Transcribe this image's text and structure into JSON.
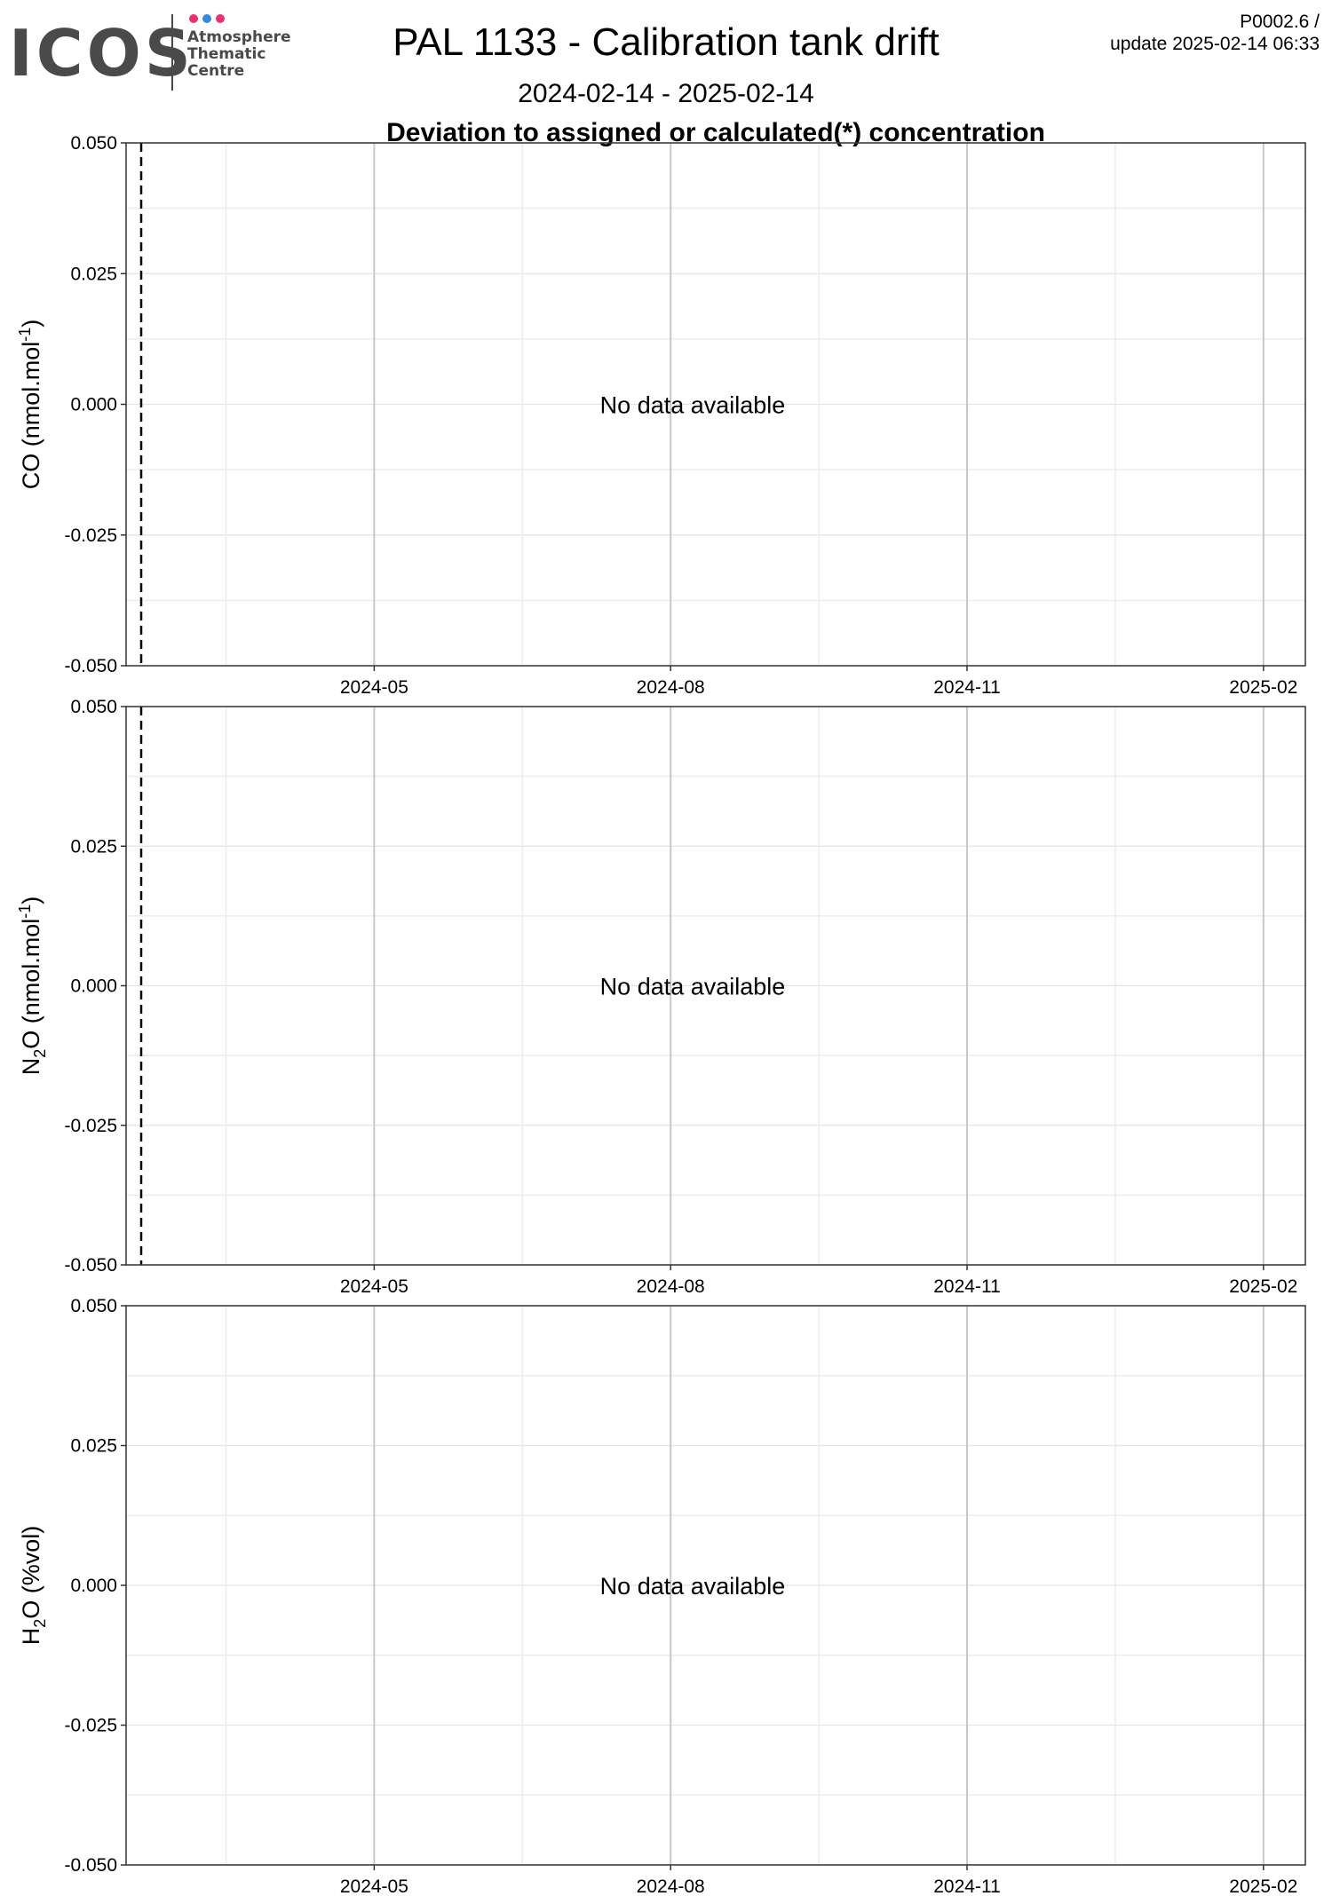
{
  "header": {
    "logo_text": "ICOS",
    "logo_sub": [
      "Atmosphere",
      "Thematic",
      "Centre"
    ],
    "logo_dot_colors": [
      "#e8336d",
      "#3b88d6",
      "#e8336d"
    ],
    "title": "PAL 1133 - Calibration tank drift",
    "subtitle": "2024-02-14 - 2025-02-14",
    "version_line1": "P0002.6 /",
    "version_line2": "update  2025-02-14 06:33",
    "section_title": "Deviation to assigned or calculated(*) concentration"
  },
  "colors": {
    "grid_major": "#cccccc",
    "grid_minor": "#ececec",
    "frame": "#333333",
    "text": "#000000",
    "logo_text": "#4a4a4a"
  },
  "chart_data": [
    {
      "type": "line",
      "ylabel": "CO (nmol.mol-1)",
      "ylabel_main": "CO (nmol.mol",
      "ylabel_sup": "-1",
      "ylabel_end": ")",
      "ylim": [
        -0.05,
        0.05
      ],
      "yticks": [
        "0.050",
        "0.025",
        "0.000",
        "-0.025",
        "-0.050"
      ],
      "xlim": [
        "2024-02-14",
        "2025-02-14"
      ],
      "xticks": [
        "2024-05",
        "2024-08",
        "2024-11",
        "2025-02"
      ],
      "reference_line_date": "2024-02-14",
      "series": [],
      "annotation": "No data available",
      "grid": true
    },
    {
      "type": "line",
      "ylabel": "N2O (nmol.mol-1)",
      "ylabel_main": "N",
      "ylabel_sub": "2",
      "ylabel_rest": "O (nmol.mol",
      "ylabel_sup": "-1",
      "ylabel_end": ")",
      "ylim": [
        -0.05,
        0.05
      ],
      "yticks": [
        "0.050",
        "0.025",
        "0.000",
        "-0.025",
        "-0.050"
      ],
      "xlim": [
        "2024-02-14",
        "2025-02-14"
      ],
      "xticks": [
        "2024-05",
        "2024-08",
        "2024-11",
        "2025-02"
      ],
      "reference_line_date": "2024-02-14",
      "series": [],
      "annotation": "No data available",
      "grid": true
    },
    {
      "type": "line",
      "ylabel": "H2O (%vol)",
      "ylabel_main": "H",
      "ylabel_sub": "2",
      "ylabel_rest": "O (%vol)",
      "ylim": [
        -0.05,
        0.05
      ],
      "yticks": [
        "0.050",
        "0.025",
        "0.000",
        "-0.025",
        "-0.050"
      ],
      "xlim": [
        "2024-02-14",
        "2025-02-14"
      ],
      "xticks": [
        "2024-05",
        "2024-08",
        "2024-11",
        "2025-02"
      ],
      "series": [],
      "annotation": "No data available",
      "grid": true
    }
  ]
}
